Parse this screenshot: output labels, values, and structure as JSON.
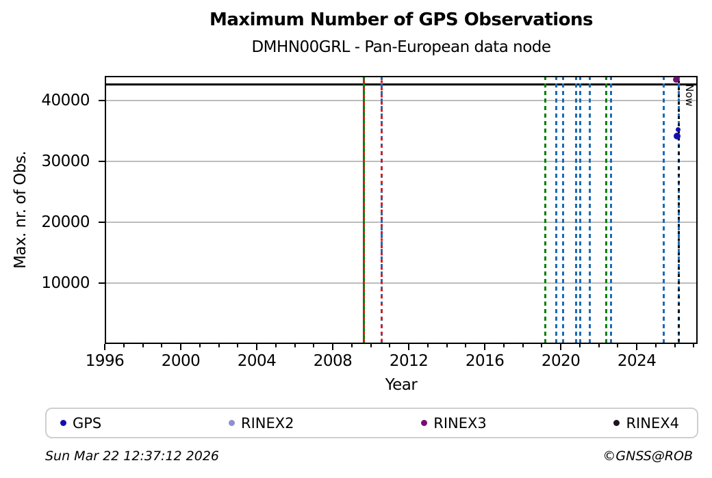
{
  "footer": {
    "timestamp": "Sun Mar 22 12:37:12 2026",
    "credit": "©GNSS@ROB"
  },
  "legend": [
    {
      "label": "GPS",
      "color": "#1010b0"
    },
    {
      "label": "RINEX2",
      "color": "#8f8fce"
    },
    {
      "label": "RINEX3",
      "color": "#760c76"
    },
    {
      "label": "RINEX4",
      "color": "#221122"
    }
  ],
  "chart_data": {
    "type": "scatter",
    "title": "Maximum Number of GPS Observations",
    "subtitle": "DMHN00GRL - Pan-European data node",
    "xlabel": "Year",
    "ylabel": "Max. nr. of Obs.",
    "xlim": [
      1996,
      2027.2
    ],
    "ylim": [
      0,
      44100
    ],
    "xticks_major": [
      1996,
      2000,
      2004,
      2008,
      2012,
      2016,
      2020,
      2024
    ],
    "xticks_minor_step_years": 1,
    "yticks": [
      10000,
      20000,
      30000,
      40000
    ],
    "grid": {
      "axis": "y",
      "color": "#bcbcbc"
    },
    "hline": {
      "y": 42700,
      "color": "#000000"
    },
    "event_lines": [
      {
        "x": 2009.62,
        "color": "#008000",
        "style": "solid",
        "overlay": "#e81212"
      },
      {
        "x": 2010.57,
        "color": "#1b6bb4",
        "style": "dashed",
        "overlay": "#e81212"
      },
      {
        "x": 2019.17,
        "color": "#008000",
        "style": "dashed",
        "overlay": null
      },
      {
        "x": 2019.77,
        "color": "#1b6bb4",
        "style": "dashed",
        "overlay": null
      },
      {
        "x": 2020.13,
        "color": "#1b6bb4",
        "style": "dashed",
        "overlay": null
      },
      {
        "x": 2020.79,
        "color": "#1b6bb4",
        "style": "dashed",
        "overlay": null
      },
      {
        "x": 2021.02,
        "color": "#1b6bb4",
        "style": "dashed",
        "overlay": null
      },
      {
        "x": 2021.53,
        "color": "#1b6bb4",
        "style": "dashed",
        "overlay": null
      },
      {
        "x": 2022.38,
        "color": "#008000",
        "style": "dashed",
        "overlay": null
      },
      {
        "x": 2022.65,
        "color": "#1b6bb4",
        "style": "dashed",
        "overlay": null
      },
      {
        "x": 2025.42,
        "color": "#1b6bb4",
        "style": "dashed",
        "overlay": null
      }
    ],
    "now_marker": {
      "x": 2026.22,
      "label": "Now",
      "base_color": "#1b6bb4",
      "overlay_color": "#000000"
    },
    "points": [
      {
        "series": "RINEX3",
        "x": 2026.08,
        "y": 43500,
        "r": 4.5,
        "color": "#760c76"
      },
      {
        "series": "GPS",
        "x": 2026.18,
        "y": 35300,
        "r": 3.5,
        "color": "#1010b0"
      },
      {
        "series": "GPS",
        "x": 2026.13,
        "y": 34200,
        "r": 5,
        "color": "#1010b0"
      }
    ]
  }
}
